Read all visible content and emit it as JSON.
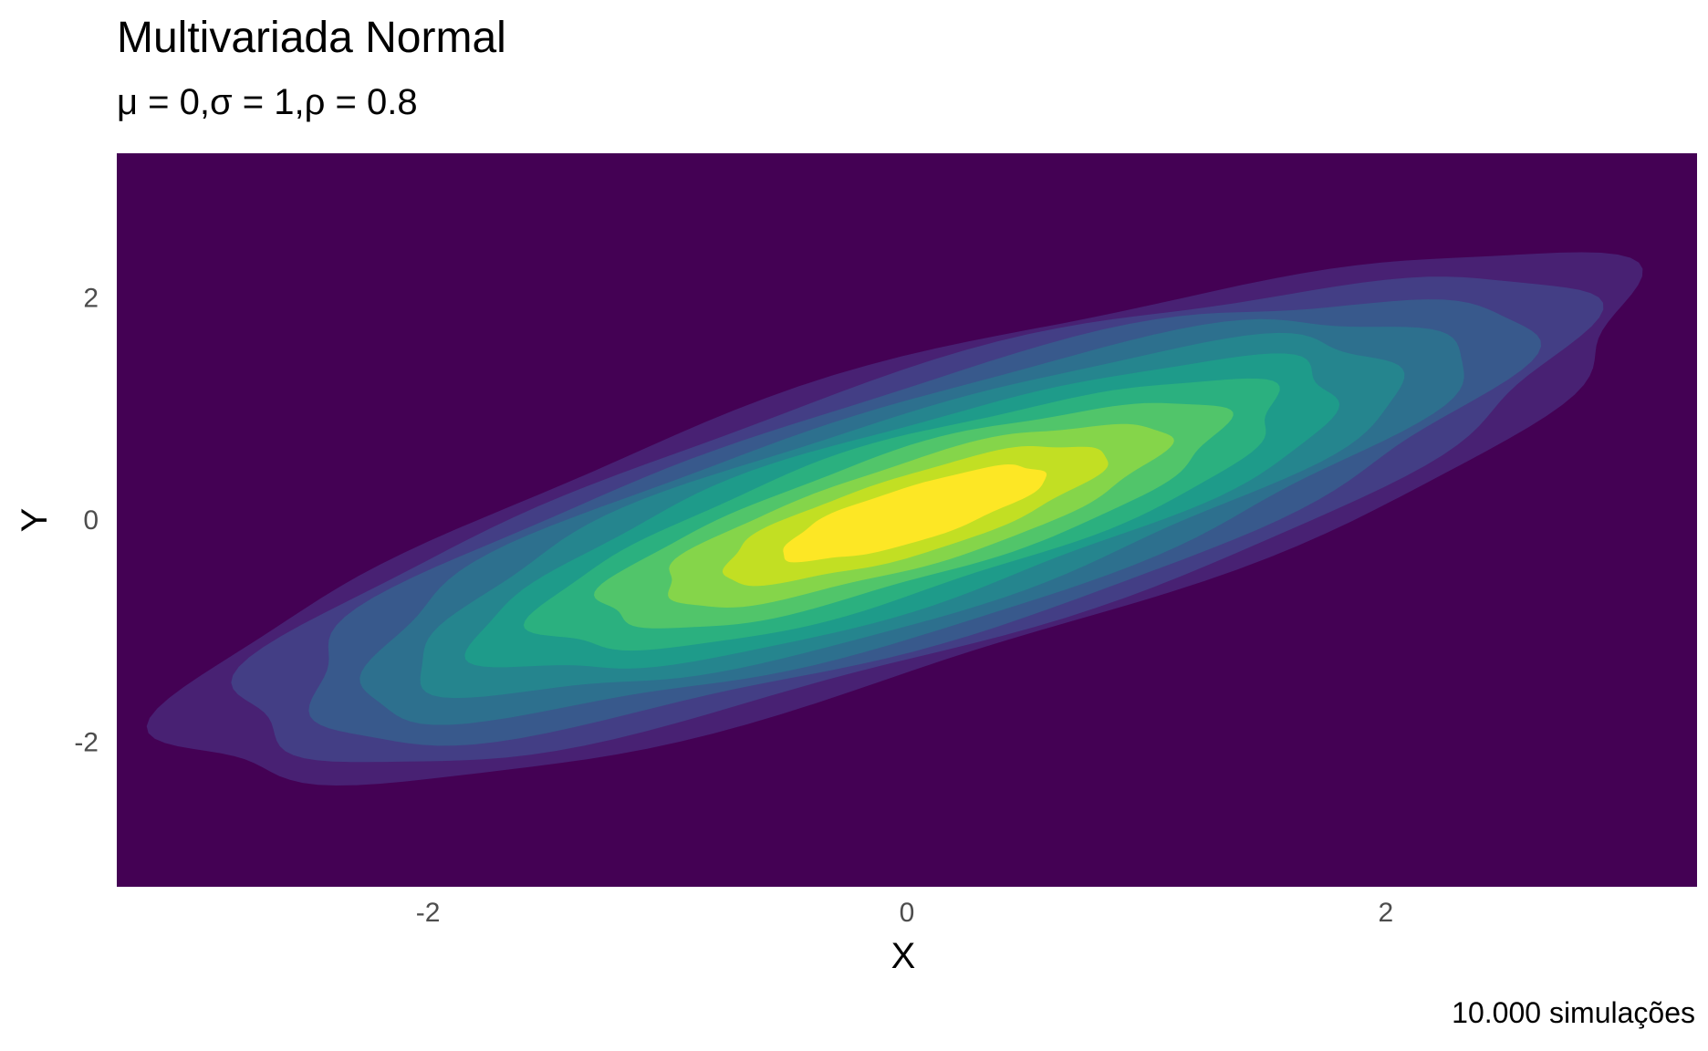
{
  "chart_data": {
    "type": "contour_density",
    "title": "Multivariada Normal",
    "subtitle": "μ = 0,σ = 1,ρ = 0.8",
    "caption": "10.000 simulações",
    "xlabel": "X",
    "ylabel": "Y",
    "xlim": [
      -3.3,
      3.3
    ],
    "ylim": [
      -3.3,
      3.3
    ],
    "x_ticks": [
      -2,
      0,
      2
    ],
    "y_ticks": [
      -2,
      0,
      2
    ],
    "x_tick_labels": [
      "-2",
      "0",
      "2"
    ],
    "y_tick_labels": [
      "-2",
      "0",
      "2"
    ],
    "grid": false,
    "distribution": {
      "mean": [
        0,
        0
      ],
      "sd": [
        1,
        1
      ],
      "rho": 0.8,
      "n": 10000
    },
    "fill_levels": [
      "#440154",
      "#482173",
      "#433E85",
      "#38598C",
      "#2D708E",
      "#25858E",
      "#1E9B8A",
      "#2BB07F",
      "#51C56A",
      "#85D54A",
      "#C2DF23",
      "#FDE725"
    ]
  }
}
